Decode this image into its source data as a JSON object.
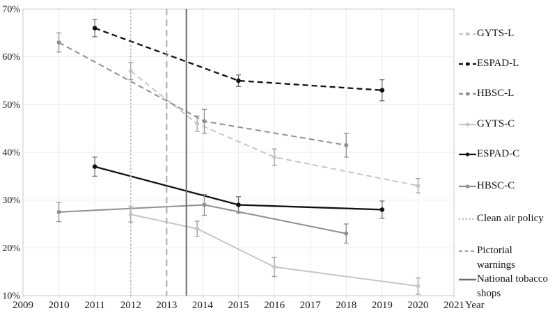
{
  "chart_data": {
    "type": "line",
    "title": "",
    "xlabel": "Year",
    "ylabel": "",
    "xlim": [
      2009,
      2021
    ],
    "ylim": [
      10,
      70
    ],
    "x_ticks": [
      2009,
      2010,
      2011,
      2012,
      2013,
      2014,
      2015,
      2016,
      2017,
      2018,
      2019,
      2020,
      2021
    ],
    "y_ticks": [
      70,
      60,
      50,
      40,
      30,
      20,
      10
    ],
    "y_tick_suffix": "%",
    "grid": true,
    "legend_position": "right",
    "colors": {
      "gyts": "#c6c6c6",
      "espad": "#111111",
      "hbsc": "#8f8f8f",
      "grid": "#ebebeb",
      "border": "#c9c9c9",
      "text": "#1a1a1a"
    },
    "series": [
      {
        "name": "GYTS-L",
        "line_style": "dashed",
        "color": "#c6c6c6",
        "err_color": "#9b9b9b",
        "points": [
          {
            "year": 2012,
            "value": 57,
            "err": 1.8
          },
          {
            "year": 2014,
            "value": 46,
            "err": 1.6,
            "dx": -0.15
          },
          {
            "year": 2016,
            "value": 39,
            "err": 1.7
          },
          {
            "year": 2020,
            "value": 33,
            "err": 1.5
          }
        ]
      },
      {
        "name": "ESPAD-L",
        "line_style": "dashed",
        "color": "#111111",
        "err_color": "#6e6e6e",
        "points": [
          {
            "year": 2011,
            "value": 66,
            "err": 1.8
          },
          {
            "year": 2015,
            "value": 55,
            "err": 1.2
          },
          {
            "year": 2019,
            "value": 53,
            "err": 2.2
          }
        ]
      },
      {
        "name": "HBSC-L",
        "line_style": "dashed",
        "color": "#8f8f8f",
        "err_color": "#8f8f8f",
        "points": [
          {
            "year": 2010,
            "value": 63,
            "err": 2.0
          },
          {
            "year": 2014,
            "value": 46.5,
            "err": 2.5,
            "dx": 0.05
          },
          {
            "year": 2018,
            "value": 41.5,
            "err": 2.5
          }
        ]
      },
      {
        "name": "GYTS-C",
        "line_style": "solid",
        "color": "#c6c6c6",
        "err_color": "#9b9b9b",
        "points": [
          {
            "year": 2012,
            "value": 27,
            "err": 1.6
          },
          {
            "year": 2014,
            "value": 24,
            "err": 1.6,
            "dx": -0.15
          },
          {
            "year": 2016,
            "value": 16,
            "err": 2.0
          },
          {
            "year": 2020,
            "value": 12,
            "err": 1.7
          }
        ]
      },
      {
        "name": "ESPAD-C",
        "line_style": "solid",
        "color": "#111111",
        "err_color": "#6e6e6e",
        "points": [
          {
            "year": 2011,
            "value": 37,
            "err": 2.0
          },
          {
            "year": 2015,
            "value": 29,
            "err": 1.7
          },
          {
            "year": 2019,
            "value": 28,
            "err": 1.8
          }
        ]
      },
      {
        "name": "HBSC-C",
        "line_style": "solid",
        "color": "#8f8f8f",
        "err_color": "#8f8f8f",
        "points": [
          {
            "year": 2010,
            "value": 27.5,
            "err": 2.0
          },
          {
            "year": 2014,
            "value": 29,
            "err": 2.2,
            "dx": 0.05
          },
          {
            "year": 2018,
            "value": 23,
            "err": 2.0
          }
        ]
      }
    ],
    "vlines": [
      {
        "name": "Clean air policy",
        "year": 2012,
        "style": "dotted",
        "color": "#b8b8b8"
      },
      {
        "name": "Pictorial warnings",
        "year": 2013,
        "style": "dashed",
        "color": "#a8a8a8"
      },
      {
        "name": "National tobacco shops",
        "year": 2013.55,
        "style": "solid",
        "color": "#6b6b6b"
      }
    ],
    "legend": [
      {
        "label": "GYTS-L",
        "swatch": "dashed",
        "marker": true,
        "color": "#c6c6c6"
      },
      {
        "label": "ESPAD-L",
        "swatch": "dashed",
        "marker": true,
        "color": "#111111"
      },
      {
        "label": "HBSC-L",
        "swatch": "dashed",
        "marker": true,
        "color": "#8f8f8f"
      },
      {
        "label": "GYTS-C",
        "swatch": "solid",
        "marker": true,
        "color": "#c6c6c6"
      },
      {
        "label": "ESPAD-C",
        "swatch": "solid",
        "marker": true,
        "color": "#111111"
      },
      {
        "label": "HBSC-C",
        "swatch": "solid",
        "marker": true,
        "color": "#8f8f8f"
      },
      {
        "label": "Clean air policy",
        "swatch": "dotted",
        "marker": false,
        "color": "#b8b8b8"
      },
      {
        "label": "Pictorial warnings",
        "lines": [
          "Pictorial",
          "warnings"
        ],
        "swatch": "dashed-short",
        "marker": false,
        "color": "#a8a8a8"
      },
      {
        "label": "National tobacco shops",
        "lines": [
          "National tobacco",
          "shops"
        ],
        "swatch": "solid-thick",
        "marker": false,
        "color": "#6b6b6b"
      }
    ]
  }
}
